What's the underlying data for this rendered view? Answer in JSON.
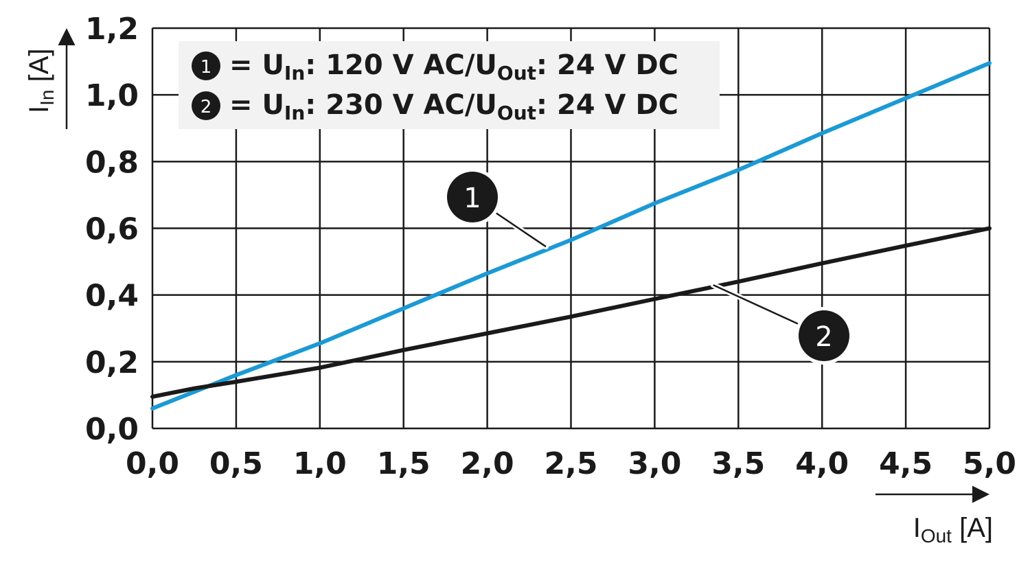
{
  "chart_data": {
    "type": "line",
    "x_axis": {
      "label_main": "I",
      "label_sub": "Out",
      "unit": "[A]",
      "range": [
        0,
        5
      ],
      "ticks": [
        0,
        0.5,
        1,
        1.5,
        2,
        2.5,
        3,
        3.5,
        4,
        4.5,
        5
      ],
      "tick_labels": [
        "0,0",
        "0,5",
        "1,0",
        "1,5",
        "2,0",
        "2,5",
        "3,0",
        "3,5",
        "4,0",
        "4,5",
        "5,0"
      ]
    },
    "y_axis": {
      "label_main": "I",
      "label_sub": "In",
      "unit": "[A]",
      "range": [
        0,
        1.2
      ],
      "ticks": [
        0,
        0.2,
        0.4,
        0.6,
        0.8,
        1.0,
        1.2
      ],
      "tick_labels": [
        "0,0",
        "0,2",
        "0,4",
        "0,6",
        "0,8",
        "1,0",
        "1,2"
      ]
    },
    "grid": true,
    "legend": {
      "position": "top-left",
      "entries": [
        {
          "id": "1",
          "eq": "=",
          "u": "U",
          "u_sub": "In",
          "text_mid": ": 120 V AC/U",
          "u2_sub": "Out",
          "text_end": ": 24 V DC"
        },
        {
          "id": "2",
          "eq": "=",
          "u": "U",
          "u_sub": "In",
          "text_mid": ": 230 V AC/U",
          "u2_sub": "Out",
          "text_end": ": 24 V DC"
        }
      ]
    },
    "series": [
      {
        "name": "1",
        "color": "#1a9ad6",
        "x": [
          0,
          0.5,
          1.0,
          1.5,
          2.0,
          2.5,
          3.0,
          3.5,
          4.0,
          4.5,
          5.0
        ],
        "y": [
          0.06,
          0.16,
          0.255,
          0.36,
          0.465,
          0.565,
          0.675,
          0.775,
          0.885,
          0.99,
          1.095
        ],
        "callout": {
          "label": "1",
          "anchor_x": 2.35,
          "anchor_y": 0.545
        }
      },
      {
        "name": "2",
        "color": "#1a1a1a",
        "x": [
          0,
          0.25,
          0.5,
          1.0,
          1.5,
          2.0,
          2.5,
          3.0,
          3.5,
          4.0,
          4.5,
          5.0
        ],
        "y": [
          0.095,
          0.12,
          0.14,
          0.182,
          0.235,
          0.285,
          0.335,
          0.388,
          0.44,
          0.495,
          0.548,
          0.6
        ],
        "callout": {
          "label": "2",
          "anchor_x": 3.35,
          "anchor_y": 0.43
        }
      }
    ]
  }
}
